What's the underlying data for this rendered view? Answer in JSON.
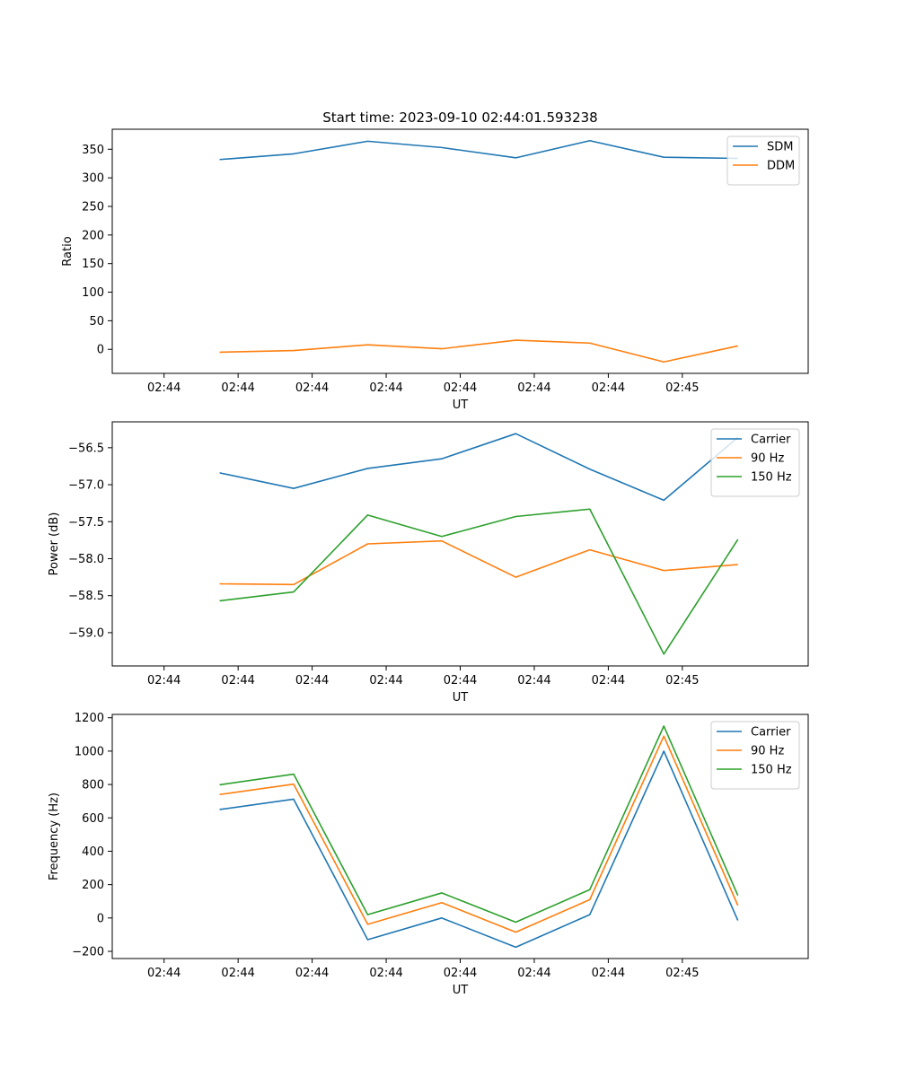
{
  "chart_data": [
    {
      "type": "line",
      "title": "Start time: 2023-09-10 02:44:01.593238",
      "xlabel": "UT",
      "ylabel": "Ratio",
      "xtick_labels": [
        "02:44",
        "02:44",
        "02:44",
        "02:44",
        "02:44",
        "02:44",
        "02:44"
      ],
      "xtick_last_label": "02:45",
      "yticks": [
        0,
        50,
        100,
        150,
        200,
        250,
        300,
        350
      ],
      "ylim": [
        -42,
        385
      ],
      "xlim": [
        -0.7,
        8.7
      ],
      "x": [
        0.75,
        1.75,
        2.75,
        3.75,
        4.75,
        5.75,
        6.75,
        7.75
      ],
      "legend": "top-right",
      "series": [
        {
          "name": "SDM",
          "color": "#1f77b4",
          "values": [
            332,
            342,
            364,
            353,
            335,
            365,
            336,
            334
          ]
        },
        {
          "name": "DDM",
          "color": "#ff7f0e",
          "values": [
            -5,
            -2,
            8,
            1,
            16,
            11,
            -22,
            6
          ]
        }
      ]
    },
    {
      "type": "line",
      "title": "",
      "xlabel": "UT",
      "ylabel": "Power (dB)",
      "xtick_labels": [
        "02:44",
        "02:44",
        "02:44",
        "02:44",
        "02:44",
        "02:44",
        "02:44"
      ],
      "xtick_last_label": "02:45",
      "yticks": [
        -59.0,
        -58.5,
        -58.0,
        -57.5,
        -57.0,
        -56.5
      ],
      "ylim": [
        -59.45,
        -56.15
      ],
      "xlim": [
        -0.7,
        8.7
      ],
      "x": [
        0.75,
        1.75,
        2.75,
        3.75,
        4.75,
        5.75,
        6.75,
        7.75
      ],
      "legend": "top-right",
      "series": [
        {
          "name": "Carrier",
          "color": "#1f77b4",
          "values": [
            -56.84,
            -57.05,
            -56.78,
            -56.65,
            -56.31,
            -56.79,
            -57.21,
            -56.36
          ]
        },
        {
          "name": "90 Hz",
          "color": "#ff7f0e",
          "values": [
            -58.34,
            -58.35,
            -57.8,
            -57.76,
            -58.25,
            -57.88,
            -58.16,
            -58.08
          ]
        },
        {
          "name": "150 Hz",
          "color": "#2ca02c",
          "values": [
            -58.57,
            -58.45,
            -57.41,
            -57.7,
            -57.43,
            -57.33,
            -59.29,
            -57.74
          ]
        }
      ]
    },
    {
      "type": "line",
      "title": "",
      "xlabel": "UT",
      "ylabel": "Frequency (Hz)",
      "xtick_labels": [
        "02:44",
        "02:44",
        "02:44",
        "02:44",
        "02:44",
        "02:44",
        "02:44"
      ],
      "xtick_last_label": "02:45",
      "yticks": [
        -200,
        0,
        200,
        400,
        600,
        800,
        1000,
        1200
      ],
      "ylim": [
        -243,
        1220
      ],
      "xlim": [
        -0.7,
        8.7
      ],
      "x": [
        0.75,
        1.75,
        2.75,
        3.75,
        4.75,
        5.75,
        6.75,
        7.75
      ],
      "legend": "top-right",
      "series": [
        {
          "name": "Carrier",
          "color": "#1f77b4",
          "values": [
            650,
            712,
            -130,
            0,
            -175,
            20,
            1000,
            -15
          ]
        },
        {
          "name": "90 Hz",
          "color": "#ff7f0e",
          "values": [
            740,
            802,
            -38,
            92,
            -85,
            110,
            1090,
            75
          ]
        },
        {
          "name": "150 Hz",
          "color": "#2ca02c",
          "values": [
            798,
            862,
            20,
            150,
            -25,
            170,
            1150,
            135
          ]
        }
      ]
    }
  ]
}
